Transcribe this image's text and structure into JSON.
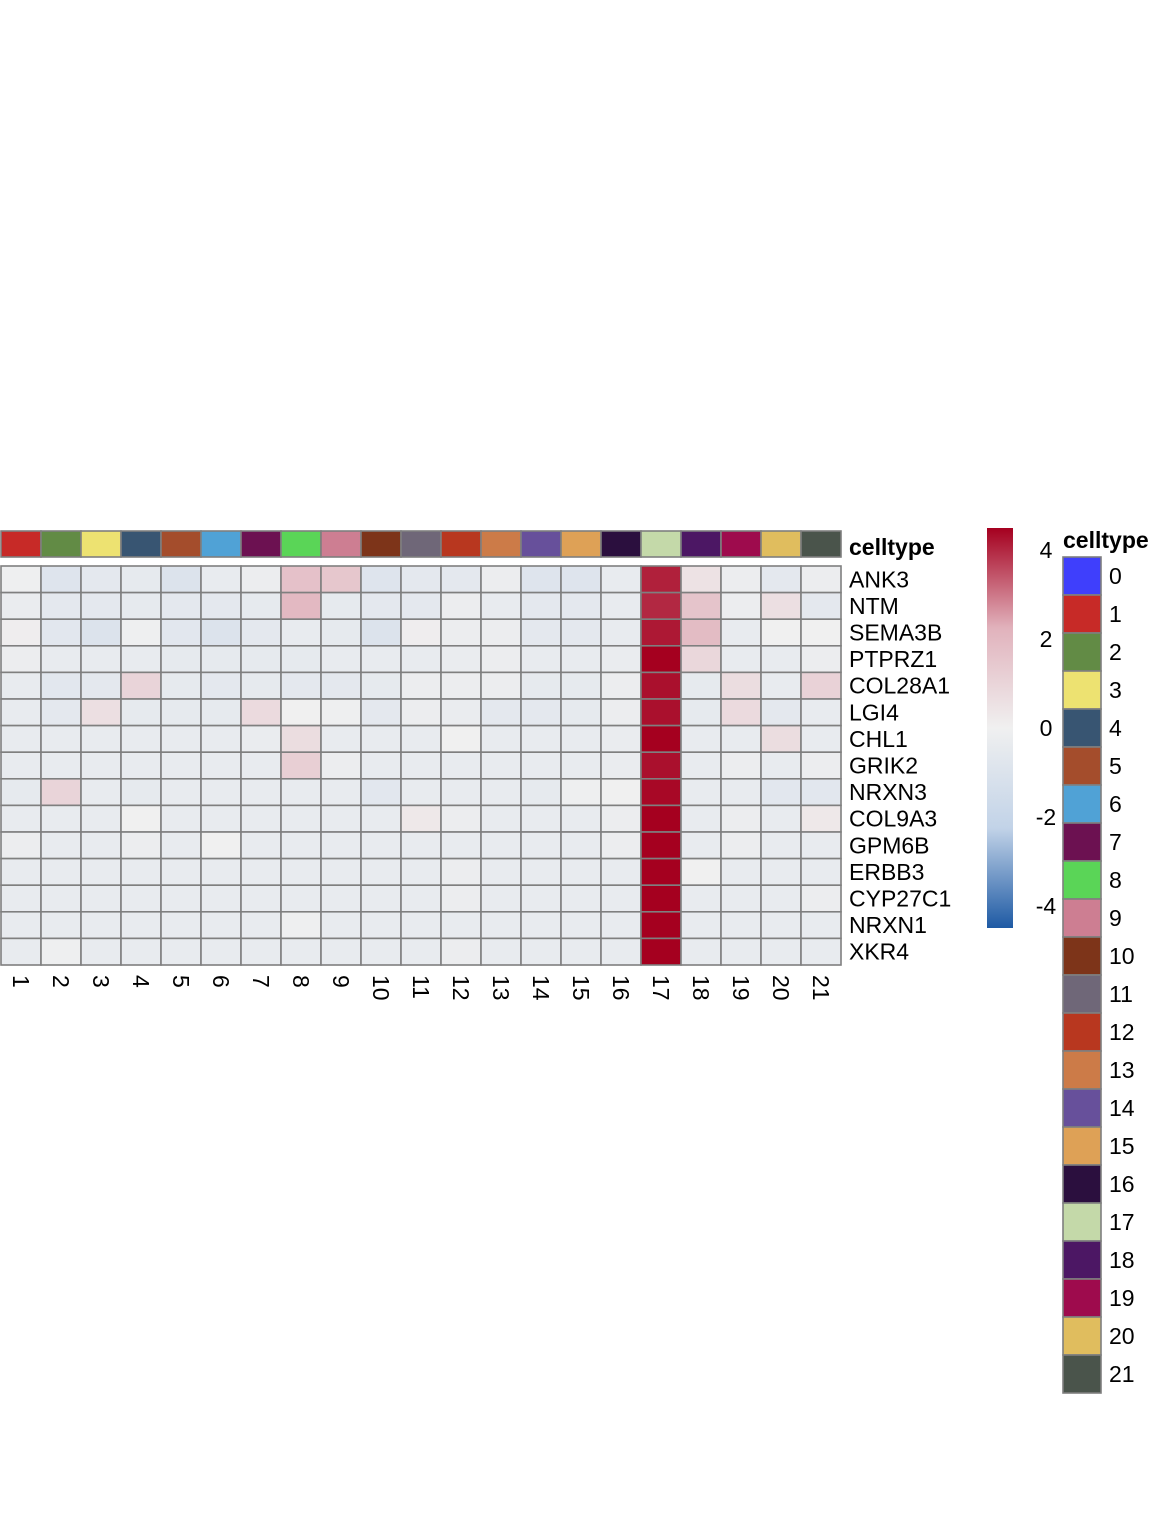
{
  "chart_data": {
    "type": "heatmap",
    "annotation": {
      "name": "celltype",
      "colors": {
        "0": "#3f3ffc",
        "1": "#c72a27",
        "2": "#628b45",
        "3": "#ede271",
        "4": "#385572",
        "5": "#a44d2c",
        "6": "#50a2d6",
        "7": "#6c1151",
        "8": "#5ad557",
        "9": "#cd7e92",
        "10": "#7d3419",
        "11": "#6f6778",
        "12": "#b8371f",
        "13": "#cc7b48",
        "14": "#67509b",
        "15": "#dea156",
        "16": "#2b0f3e",
        "17": "#c4d9a9",
        "18": "#4c1764",
        "19": "#9e0b4d",
        "20": "#e0bd5e",
        "21": "#4a544b"
      },
      "legend_levels": [
        "0",
        "1",
        "2",
        "3",
        "4",
        "5",
        "6",
        "7",
        "8",
        "9",
        "10",
        "11",
        "12",
        "13",
        "14",
        "15",
        "16",
        "17",
        "18",
        "19",
        "20",
        "21"
      ]
    },
    "columns": [
      "1",
      "2",
      "3",
      "4",
      "5",
      "6",
      "7",
      "8",
      "9",
      "10",
      "11",
      "12",
      "13",
      "14",
      "15",
      "16",
      "17",
      "18",
      "19",
      "20",
      "21"
    ],
    "rows": [
      "ANK3",
      "NTM",
      "SEMA3B",
      "PTPRZ1",
      "COL28A1",
      "LGI4",
      "CHL1",
      "GRIK2",
      "NRXN3",
      "COL9A3",
      "GPM6B",
      "ERBB3",
      "CYP27C1",
      "NRXN1",
      "XKR4"
    ],
    "values": [
      [
        -0.1,
        -0.9,
        -0.6,
        -0.5,
        -1.0,
        -0.4,
        -0.2,
        1.7,
        1.5,
        -0.9,
        -0.6,
        -0.6,
        -0.2,
        -0.9,
        -0.9,
        -0.4,
        4.1,
        0.5,
        -0.2,
        -0.6,
        -0.2
      ],
      [
        -0.3,
        -0.6,
        -0.6,
        -0.5,
        -0.6,
        -0.6,
        -0.5,
        2.0,
        -0.5,
        -0.6,
        -0.6,
        -0.2,
        -0.4,
        -0.6,
        -0.6,
        -0.4,
        4.0,
        1.6,
        -0.2,
        0.6,
        -0.6
      ],
      [
        0.1,
        -0.7,
        -1.0,
        -0.1,
        -0.7,
        -1.0,
        -0.6,
        -0.4,
        -0.5,
        -1.0,
        0.1,
        -0.2,
        -0.2,
        -0.6,
        -0.6,
        -0.4,
        4.2,
        1.9,
        -0.4,
        0.0,
        0.0
      ],
      [
        -0.2,
        -0.4,
        -0.4,
        -0.4,
        -0.5,
        -0.5,
        -0.5,
        -0.5,
        -0.4,
        -0.4,
        -0.4,
        -0.3,
        -0.2,
        -0.4,
        -0.4,
        -0.3,
        4.5,
        0.9,
        -0.4,
        -0.4,
        -0.2
      ],
      [
        -0.4,
        -0.7,
        -0.6,
        1.0,
        -0.5,
        -0.6,
        -0.5,
        -0.6,
        -0.6,
        -0.5,
        -0.2,
        -0.2,
        -0.2,
        -0.5,
        -0.5,
        -0.2,
        4.3,
        -0.5,
        0.7,
        -0.4,
        1.1
      ],
      [
        -0.4,
        -0.6,
        0.6,
        -0.5,
        -0.5,
        -0.5,
        0.8,
        0.0,
        -0.1,
        -0.6,
        -0.2,
        -0.3,
        -0.6,
        -0.6,
        -0.5,
        -0.2,
        4.3,
        -0.5,
        0.8,
        -0.6,
        -0.4
      ],
      [
        -0.4,
        -0.4,
        -0.4,
        -0.4,
        -0.4,
        -0.4,
        -0.3,
        0.7,
        -0.4,
        -0.4,
        -0.4,
        0.0,
        -0.4,
        -0.4,
        -0.4,
        -0.3,
        4.5,
        -0.4,
        -0.4,
        0.7,
        -0.4
      ],
      [
        -0.4,
        -0.4,
        -0.4,
        -0.4,
        -0.4,
        -0.4,
        -0.4,
        1.2,
        -0.2,
        -0.4,
        -0.4,
        -0.4,
        -0.4,
        -0.4,
        -0.4,
        -0.3,
        4.3,
        -0.4,
        -0.2,
        -0.4,
        -0.2
      ],
      [
        -0.5,
        1.0,
        -0.4,
        -0.5,
        -0.4,
        -0.4,
        -0.4,
        -0.4,
        -0.4,
        -0.7,
        -0.4,
        -0.4,
        -0.4,
        -0.5,
        -0.1,
        0.0,
        4.4,
        -0.4,
        -0.4,
        -0.7,
        -0.7
      ],
      [
        -0.4,
        -0.4,
        -0.4,
        0.0,
        -0.4,
        -0.4,
        -0.4,
        -0.4,
        -0.4,
        -0.4,
        0.3,
        -0.2,
        -0.4,
        -0.4,
        -0.4,
        -0.2,
        4.5,
        -0.4,
        -0.2,
        -0.4,
        0.3
      ],
      [
        -0.2,
        -0.4,
        -0.4,
        -0.2,
        -0.4,
        0.0,
        -0.4,
        -0.4,
        -0.4,
        -0.4,
        -0.4,
        -0.4,
        -0.4,
        -0.4,
        -0.4,
        -0.2,
        4.5,
        -0.4,
        -0.2,
        -0.4,
        -0.4
      ],
      [
        -0.4,
        -0.4,
        -0.4,
        -0.4,
        -0.4,
        -0.4,
        -0.4,
        -0.4,
        -0.4,
        -0.4,
        -0.4,
        -0.2,
        -0.4,
        -0.4,
        -0.4,
        -0.4,
        4.5,
        0.0,
        -0.4,
        -0.4,
        -0.4
      ],
      [
        -0.4,
        -0.4,
        -0.4,
        -0.4,
        -0.4,
        -0.4,
        -0.4,
        -0.4,
        -0.4,
        -0.4,
        -0.4,
        -0.2,
        -0.4,
        -0.4,
        -0.4,
        -0.4,
        4.5,
        -0.4,
        -0.4,
        -0.4,
        -0.2
      ],
      [
        -0.4,
        -0.4,
        -0.4,
        -0.4,
        -0.4,
        -0.4,
        -0.4,
        -0.1,
        -0.4,
        -0.4,
        -0.4,
        -0.4,
        -0.4,
        -0.4,
        -0.4,
        -0.4,
        4.5,
        -0.4,
        -0.4,
        -0.4,
        -0.4
      ],
      [
        -0.4,
        -0.1,
        -0.4,
        -0.4,
        -0.4,
        -0.4,
        -0.4,
        -0.4,
        -0.4,
        -0.4,
        -0.4,
        -0.2,
        -0.4,
        -0.4,
        -0.4,
        -0.4,
        4.5,
        -0.4,
        -0.4,
        -0.4,
        -0.4
      ]
    ],
    "color_scale": {
      "range": [
        -4.5,
        4.5
      ],
      "ticks": [
        4,
        2,
        0,
        -2,
        -4
      ],
      "tick_labels": [
        "4",
        "2",
        "0",
        "-2",
        "-4"
      ],
      "stops": [
        "#1e5aa4",
        "#c2d3e8",
        "#f0f0f0",
        "#e1b2bc",
        "#a5001f"
      ]
    },
    "legend_title": "celltype",
    "grid": true
  }
}
